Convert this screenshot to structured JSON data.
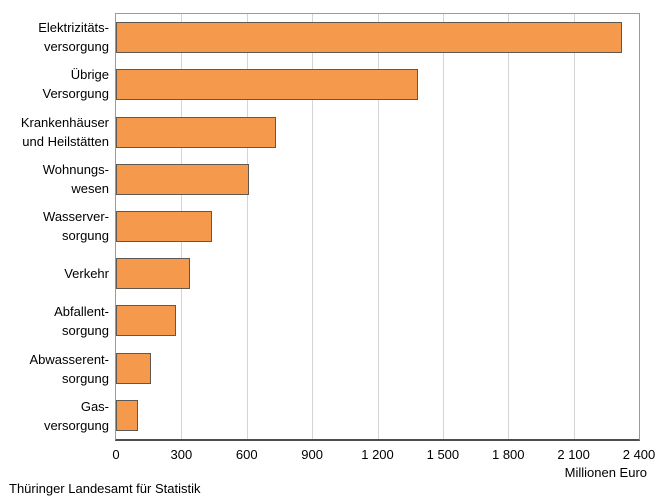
{
  "chart_data": {
    "type": "bar",
    "orientation": "horizontal",
    "categories": [
      "Elektrizitätsversorgung",
      "Übrige Versorgung",
      "Krankenhäuser und Heilstätten",
      "Wohnungswesen",
      "Wasserversorgung",
      "Verkehr",
      "Abfallentsorgung",
      "Abwasserentsorgung",
      "Gasversorgung"
    ],
    "category_label_lines": [
      [
        "Elektrizitäts-",
        "versorgung"
      ],
      [
        "Übrige",
        "Versorgung"
      ],
      [
        "Krankenhäuser",
        "und Heilstätten"
      ],
      [
        "Wohnungs-",
        "wesen"
      ],
      [
        "Wasserver-",
        "sorgung"
      ],
      [
        "Verkehr"
      ],
      [
        "Abfallent-",
        "sorgung"
      ],
      [
        "Abwasserent-",
        "sorgung"
      ],
      [
        "Gas-",
        "versorgung"
      ]
    ],
    "values": [
      2320,
      1385,
      735,
      610,
      440,
      340,
      275,
      160,
      100
    ],
    "title": "",
    "xlabel": "Millionen Euro",
    "ylabel": "",
    "xlim": [
      0,
      2400
    ],
    "xticks": [
      0,
      300,
      600,
      900,
      1200,
      1500,
      1800,
      2100,
      2400
    ],
    "xtick_labels": [
      "0",
      "300",
      "600",
      "900",
      "1 200",
      "1 500",
      "1 800",
      "2 100",
      "2 400"
    ],
    "grid": true,
    "legend": false,
    "bar_color": "#f5994d",
    "bar_border_color": "#5f5850",
    "gridline_color": "#d4d4d4"
  },
  "footer": {
    "source": "Thüringer Landesamt für Statistik"
  }
}
